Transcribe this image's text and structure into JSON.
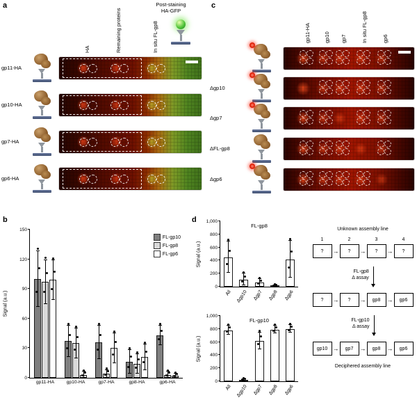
{
  "figure": {
    "icons": {
      "right_arrow": "→"
    },
    "panel_a": {
      "label": "a",
      "post_staining": {
        "line1": "Post-staining",
        "line2": "HA-GFP"
      },
      "col_labels": [
        "HA",
        "Remaining proteins",
        "In situ FL-gp8"
      ],
      "rows": [
        {
          "label": "gp11-HA"
        },
        {
          "label": "gp10-HA"
        },
        {
          "label": "gp7-HA"
        },
        {
          "label": "gp6-HA"
        }
      ]
    },
    "panel_b": {
      "label": "b"
    },
    "panel_c": {
      "label": "c",
      "col_labels": [
        "gp11-HA",
        "gp10",
        "gp7",
        "In situ FL-gp8",
        "gp6"
      ],
      "rows": [
        {
          "label": "",
          "icon": "phage-red",
          "spots": [
            1,
            1,
            1,
            1,
            1
          ]
        },
        {
          "label": "Δgp10",
          "icon": "phage-red",
          "spots": [
            0,
            1,
            1,
            1,
            1
          ]
        },
        {
          "label": "Δgp7",
          "icon": "phage-red",
          "spots": [
            1,
            1,
            0,
            1,
            1
          ]
        },
        {
          "label": "ΔFL-gp8",
          "icon": "phage",
          "spots": [
            1,
            1,
            1,
            0,
            1
          ]
        },
        {
          "label": "Δgp6",
          "icon": "phage-red",
          "spots": [
            1,
            1,
            1,
            1,
            0
          ]
        }
      ]
    },
    "panel_d": {
      "label": "d",
      "diagram": {
        "unknown_title": "Unknown assembly line",
        "deciphered_title": "Deciphered assembly line",
        "step_numbers": [
          "1",
          "2",
          "3",
          "4"
        ],
        "row_unknown": [
          "?",
          "?",
          "?",
          "?"
        ],
        "assay1": {
          "line1": "FL-gp8",
          "line2": "Δ assay"
        },
        "row_partial": [
          "?",
          "?",
          "gp8",
          "gp6"
        ],
        "assay2": {
          "line1": "FL-gp10",
          "line2": "Δ assay"
        },
        "row_final": [
          "gp10",
          "gp7",
          "gp8",
          "gp6"
        ]
      }
    }
  },
  "chart_data": [
    {
      "id": "panel_b_chart",
      "type": "bar",
      "title": "",
      "xlabel": "",
      "ylabel": "Signal (a.u.)",
      "ylim": [
        0,
        150
      ],
      "yticks": [
        0,
        30,
        60,
        90,
        120,
        150
      ],
      "ytick_labels": [
        "0",
        "30",
        "60",
        "90",
        "120",
        "150"
      ],
      "categories": [
        "gp11-HA",
        "gp10-HA",
        "gp7-HA",
        "gp8-HA",
        "gp6-HA"
      ],
      "series": [
        {
          "name": "FL-gp10",
          "color": "#7f7f7f",
          "values": [
            100,
            37,
            36,
            16,
            43
          ],
          "errors": [
            28,
            16,
            17,
            12,
            10
          ]
        },
        {
          "name": "FL-gp8",
          "color": "#d9d9d9",
          "values": [
            97,
            35,
            4,
            14,
            3
          ],
          "errors": [
            22,
            15,
            4,
            10,
            3
          ]
        },
        {
          "name": "FL-gp6",
          "color": "#ffffff",
          "values": [
            99,
            3,
            30,
            21,
            2
          ],
          "errors": [
            20,
            3,
            15,
            13,
            2
          ]
        }
      ],
      "legend_position": "top-right",
      "grid": false
    },
    {
      "id": "panel_d_top_chart",
      "type": "bar",
      "title": "FL-gp8",
      "xlabel": "",
      "ylabel": "Signal (a.u.)",
      "ylim": [
        0,
        1000
      ],
      "yticks": [
        0,
        200,
        400,
        600,
        800,
        1000
      ],
      "ytick_labels": [
        "0",
        "200",
        "400",
        "600",
        "800",
        "1,000"
      ],
      "categories": [
        "All",
        "Δgp10",
        "Δgp7",
        "Δgp8",
        "Δgp6"
      ],
      "series": [
        {
          "name": "FL-gp8",
          "color": "#ffffff",
          "values": [
            450,
            110,
            60,
            8,
            420
          ],
          "errors": [
            240,
            90,
            55,
            10,
            280
          ]
        }
      ],
      "legend_position": "none",
      "grid": false
    },
    {
      "id": "panel_d_bottom_chart",
      "type": "bar",
      "title": "FL-gp10",
      "xlabel": "",
      "ylabel": "Signal (a.u.)",
      "ylim": [
        0,
        1000
      ],
      "yticks": [
        0,
        200,
        400,
        600,
        800,
        1000
      ],
      "ytick_labels": [
        "0",
        "200",
        "400",
        "600",
        "800",
        "1,000"
      ],
      "categories": [
        "All",
        "Δgp10",
        "Δgp7",
        "Δgp8",
        "Δgp6"
      ],
      "series": [
        {
          "name": "FL-gp10",
          "color": "#ffffff",
          "values": [
            780,
            20,
            620,
            790,
            800
          ],
          "errors": [
            70,
            15,
            130,
            60,
            60
          ]
        }
      ],
      "legend_position": "none",
      "grid": false
    }
  ]
}
